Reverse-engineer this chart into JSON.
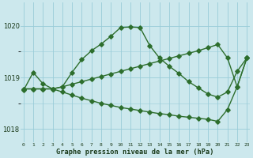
{
  "bg_color": "#cce8ed",
  "grid_color": "#99ccd8",
  "line_color": "#2d6e2d",
  "xlabel": "Graphe pression niveau de la mer (hPa)",
  "x_labels": [
    "0",
    "1",
    "2",
    "3",
    "4",
    "5",
    "6",
    "7",
    "8",
    "9",
    "10",
    "11",
    "12",
    "13",
    "14",
    "15",
    "16",
    "17",
    "18",
    "19",
    "20",
    "21",
    "22",
    "23"
  ],
  "ylim_min": 1017.75,
  "ylim_max": 1020.45,
  "yticks": [
    1018.0,
    1019.0,
    1020.0
  ],
  "y_curve": [
    1018.75,
    1019.1,
    1018.88,
    1018.78,
    1018.82,
    1019.1,
    1019.35,
    1019.52,
    1019.65,
    1019.8,
    1019.97,
    1019.98,
    1019.97,
    1019.62,
    1019.38,
    1019.22,
    1019.08,
    1018.92,
    1018.8,
    1018.68,
    1018.62,
    1018.72,
    1019.12,
    1019.38
  ],
  "y_down": [
    1018.78,
    1018.78,
    1018.78,
    1018.78,
    1018.72,
    1018.66,
    1018.6,
    1018.55,
    1018.5,
    1018.46,
    1018.42,
    1018.39,
    1018.36,
    1018.33,
    1018.3,
    1018.28,
    1018.25,
    1018.23,
    1018.21,
    1018.19,
    1018.15,
    1018.38,
    1018.82,
    1019.38
  ],
  "y_up": [
    1018.78,
    1018.78,
    1018.78,
    1018.78,
    1018.82,
    1018.87,
    1018.92,
    1018.97,
    1019.02,
    1019.07,
    1019.12,
    1019.17,
    1019.22,
    1019.27,
    1019.32,
    1019.37,
    1019.42,
    1019.47,
    1019.52,
    1019.58,
    1019.64,
    1019.38,
    1018.82,
    1019.38
  ],
  "curve_marker_hours": [
    0,
    1,
    2,
    4,
    6,
    7,
    8,
    9,
    10,
    11,
    12,
    13,
    14,
    16,
    17,
    19,
    20,
    21,
    22,
    23
  ],
  "down_marker_hours": [
    3,
    4,
    9,
    14,
    19,
    20,
    21,
    22,
    23
  ],
  "up_marker_hours": [
    3,
    8,
    13,
    16,
    19,
    20,
    21,
    22,
    23
  ]
}
